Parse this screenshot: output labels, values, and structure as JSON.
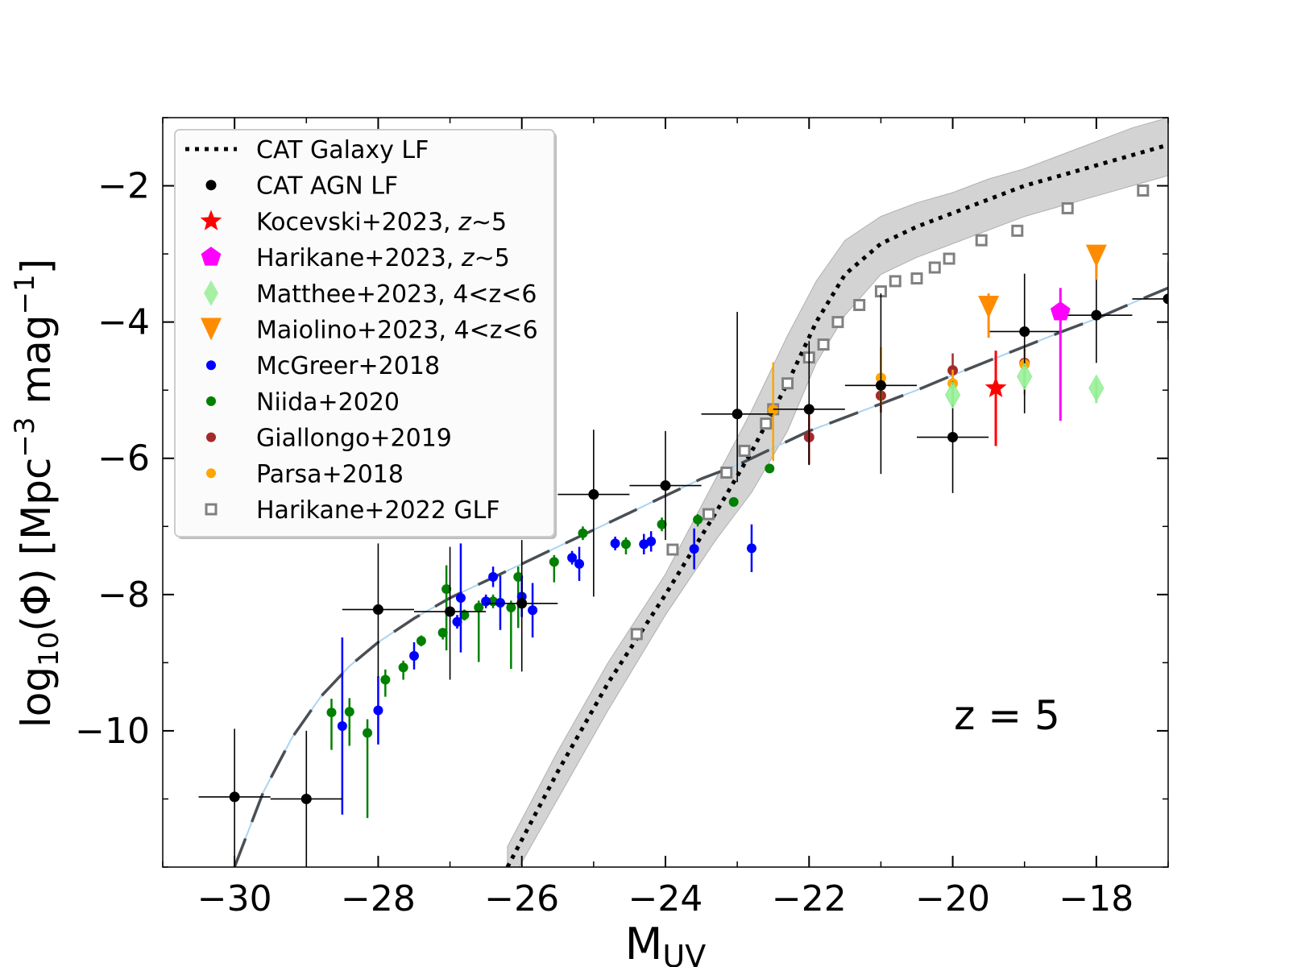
{
  "chart_data": {
    "type": "scatter",
    "xlabel_main": "M",
    "xlabel_sub": "UV",
    "ylabel": "log10(Φ) [Mpc^-3 mag^-1]",
    "ylabel_parts": {
      "pre": "log",
      "sub": "10",
      "mid": "(Φ) [Mpc",
      "sup1": "−3",
      "mid2": " mag",
      "sup2": "−1",
      "post": "]"
    },
    "annotation": "z = 5",
    "xlim": [
      -31,
      -17
    ],
    "ylim": [
      -12,
      -1
    ],
    "xticks": [
      -30,
      -28,
      -26,
      -24,
      -22,
      -20,
      -18
    ],
    "xtick_labels": [
      "−30",
      "−28",
      "−26",
      "−24",
      "−22",
      "−20",
      "−18"
    ],
    "yticks": [
      -10,
      -8,
      -6,
      -4,
      -2
    ],
    "ytick_labels": [
      "−10",
      "−8",
      "−6",
      "−4",
      "−2"
    ],
    "legend": [
      {
        "label": "CAT Galaxy LF",
        "marker": "dotted-line",
        "color": "#000000"
      },
      {
        "label": "CAT AGN LF",
        "marker": "circle",
        "color": "#000000"
      },
      {
        "label": "Kocevski+2023, ",
        "label_italic": "z",
        "label_tail": "∼5",
        "marker": "star",
        "color": "#ff0000"
      },
      {
        "label": "Harikane+2023, ",
        "label_italic": "z",
        "label_tail": "∼5",
        "marker": "pentagon",
        "color": "#ff00ff"
      },
      {
        "label": "Matthee+2023, 4<z<6",
        "marker": "thin-diamond",
        "color": "#90ee90"
      },
      {
        "label": "Maiolino+2023, 4<z<6",
        "marker": "triangle-down",
        "color": "#ff8c00"
      },
      {
        "label": "McGreer+2018",
        "marker": "circle-small",
        "color": "#0000ff"
      },
      {
        "label": "Niida+2020",
        "marker": "circle-small",
        "color": "#008000"
      },
      {
        "label": "Giallongo+2019",
        "marker": "circle-small",
        "color": "#a52a2a"
      },
      {
        "label": "Parsa+2018",
        "marker": "circle-small",
        "color": "#ffa500"
      },
      {
        "label": "Harikane+2022 GLF",
        "marker": "open-square",
        "color": "#808080"
      }
    ],
    "series": {
      "galaxy_lf": {
        "name": "CAT Galaxy LF",
        "x": [
          -26.2,
          -25.5,
          -24.8,
          -24.0,
          -23.3,
          -22.8,
          -22.3,
          -21.9,
          -21.5,
          -21.0,
          -20.5,
          -20.0,
          -19.5,
          -19.0,
          -18.5,
          -18.0,
          -17.5,
          -17.0
        ],
        "y": [
          -12.0,
          -10.6,
          -9.3,
          -8.0,
          -6.8,
          -5.9,
          -4.9,
          -4.0,
          -3.3,
          -2.85,
          -2.6,
          -2.4,
          -2.2,
          -2.0,
          -1.85,
          -1.7,
          -1.55,
          -1.4
        ],
        "band_upper": [
          -11.7,
          -10.3,
          -9.0,
          -7.7,
          -6.3,
          -5.3,
          -4.2,
          -3.4,
          -2.8,
          -2.45,
          -2.25,
          -2.1,
          -1.9,
          -1.75,
          -1.55,
          -1.35,
          -1.15,
          -1.0
        ],
        "band_lower": [
          -12.3,
          -11.0,
          -9.7,
          -8.3,
          -7.2,
          -6.5,
          -5.6,
          -4.6,
          -3.9,
          -3.3,
          -3.05,
          -2.85,
          -2.65,
          -2.45,
          -2.3,
          -2.15,
          -2.0,
          -1.85
        ]
      },
      "agn_model": {
        "name": "AGN model",
        "x": [
          -30.0,
          -29.6,
          -29.2,
          -28.8,
          -28.4,
          -28.0,
          -27.5,
          -27.0,
          -26.5,
          -26.0,
          -25.5,
          -25.0,
          -24.5,
          -24.0,
          -23.5,
          -23.0,
          -22.5,
          -22.0,
          -21.5,
          -21.0,
          -20.5,
          -20.0,
          -19.5,
          -19.0,
          -18.5,
          -18.0,
          -17.5,
          -17.0
        ],
        "y": [
          -12.0,
          -10.9,
          -10.1,
          -9.5,
          -9.05,
          -8.7,
          -8.35,
          -8.05,
          -7.8,
          -7.55,
          -7.3,
          -7.05,
          -6.8,
          -6.55,
          -6.3,
          -6.1,
          -5.85,
          -5.6,
          -5.4,
          -5.2,
          -5.0,
          -4.78,
          -4.57,
          -4.36,
          -4.15,
          -3.95,
          -3.72,
          -3.5
        ]
      },
      "cat_agn_lf": {
        "name": "CAT AGN LF",
        "x": [
          -30.0,
          -29.0,
          -28.0,
          -27.0,
          -26.0,
          -25.0,
          -24.0,
          -23.0,
          -22.0,
          -21.0,
          -20.0,
          -19.0,
          -18.0,
          -17.0
        ],
        "y": [
          -10.97,
          -11.0,
          -8.22,
          -8.25,
          -8.13,
          -6.53,
          -6.4,
          -5.35,
          -5.28,
          -4.93,
          -5.69,
          -4.14,
          -3.9,
          -3.66
        ],
        "xerr": [
          0.5,
          0.5,
          0.5,
          0.5,
          0.5,
          0.5,
          0.5,
          0.5,
          0.5,
          0.5,
          0.5,
          0.5,
          0.5,
          0.5
        ],
        "yerr_low": [
          1.03,
          1.0,
          1.0,
          1.0,
          1.0,
          1.5,
          0.8,
          1.0,
          0.82,
          1.3,
          0.82,
          1.2,
          0.7,
          0.6
        ],
        "yerr_high": [
          1.0,
          1.0,
          0.97,
          0.95,
          0.93,
          0.95,
          0.8,
          1.5,
          1.0,
          1.35,
          0.82,
          0.85,
          0.7,
          0.55
        ]
      },
      "kocevski": {
        "name": "Kocevski+2023",
        "x": [
          -19.4
        ],
        "y": [
          -4.97
        ],
        "err_low": [
          0.85
        ],
        "err_high": [
          0.55
        ]
      },
      "harikane2023": {
        "name": "Harikane+2023",
        "x": [
          -18.5
        ],
        "y": [
          -3.85
        ],
        "err_low": [
          1.6
        ],
        "err_high": [
          0.35
        ]
      },
      "matthee": {
        "name": "Matthee+2023",
        "x": [
          -20.0,
          -19.0,
          -18.0
        ],
        "y": [
          -5.07,
          -4.8,
          -4.97
        ],
        "err_low": [
          0.15,
          0.15,
          0.22
        ],
        "err_high": [
          0.15,
          0.15,
          0.12
        ]
      },
      "maiolino": {
        "name": "Maiolino+2023",
        "x": [
          -19.5,
          -18.0
        ],
        "y": [
          -3.78,
          -3.03
        ],
        "err_low": [
          0.45,
          0.35
        ],
        "err_high": [
          0.2,
          0.1
        ]
      },
      "mcgreer": {
        "name": "McGreer+2018",
        "x": [
          -28.5,
          -28.0,
          -27.5,
          -26.9,
          -26.85,
          -26.5,
          -26.4,
          -26.3,
          -26.0,
          -25.85,
          -25.3,
          -25.2,
          -24.7,
          -24.3,
          -24.2,
          -23.6,
          -22.8
        ],
        "y": [
          -9.93,
          -9.7,
          -8.9,
          -8.4,
          -8.05,
          -8.1,
          -7.74,
          -8.12,
          -8.03,
          -8.23,
          -7.46,
          -7.55,
          -7.25,
          -7.26,
          -7.22,
          -7.33,
          -7.32
        ],
        "err": [
          1.3,
          0.5,
          0.2,
          0.1,
          0.8,
          0.1,
          0.15,
          0.4,
          0.3,
          0.4,
          0.1,
          0.25,
          0.1,
          0.15,
          0.15,
          0.3,
          0.35
        ]
      },
      "niida": {
        "name": "Niida+2020",
        "x": [
          -28.65,
          -28.4,
          -28.15,
          -27.9,
          -27.65,
          -27.4,
          -27.1,
          -27.05,
          -26.8,
          -26.6,
          -26.4,
          -26.15,
          -26.05,
          -25.55,
          -25.15,
          -24.55,
          -24.05,
          -23.55,
          -23.05,
          -22.55
        ],
        "y": [
          -9.73,
          -9.72,
          -10.03,
          -9.25,
          -9.07,
          -8.68,
          -8.56,
          -7.92,
          -8.3,
          -8.19,
          -8.1,
          -8.19,
          -7.74,
          -7.52,
          -7.1,
          -7.26,
          -6.97,
          -6.9,
          -6.64,
          -6.15
        ],
        "err_low": [
          0.55,
          0.5,
          1.25,
          0.25,
          0.18,
          0.08,
          0.1,
          0.9,
          0.08,
          0.8,
          0.1,
          0.9,
          0.75,
          0.3,
          0.1,
          0.15,
          0.1,
          0.1,
          0.05,
          0.05
        ],
        "err_high": [
          0.2,
          0.2,
          0.2,
          0.15,
          0.1,
          0.08,
          0.05,
          0.35,
          0.08,
          0.1,
          0.1,
          0.1,
          0.15,
          0.1,
          0.1,
          0.1,
          0.1,
          0.08,
          0.05,
          0.05
        ]
      },
      "giallongo": {
        "name": "Giallongo+2019",
        "x": [
          -22.0,
          -21.0,
          -20.0,
          -19.0
        ],
        "y": [
          -5.69,
          -5.08,
          -4.71,
          -4.6
        ],
        "err": [
          0.4,
          0.25,
          0.25,
          0.2
        ]
      },
      "parsa": {
        "name": "Parsa+2018",
        "x": [
          -22.5,
          -21.0,
          -20.0,
          -19.0
        ],
        "y": [
          -5.29,
          -4.82,
          -4.9,
          -4.62
        ],
        "err_low": [
          0.75,
          0.4,
          0.3,
          0.45
        ],
        "err_high": [
          0.7,
          0.45,
          0.2,
          0.2
        ]
      },
      "harikane2022_glf": {
        "name": "Harikane+2022 GLF",
        "x": [
          -24.4,
          -23.9,
          -23.4,
          -23.15,
          -22.9,
          -22.6,
          -22.5,
          -22.3,
          -22.0,
          -21.8,
          -21.6,
          -21.3,
          -21.0,
          -20.8,
          -20.5,
          -20.25,
          -20.05,
          -19.6,
          -19.1,
          -18.4,
          -17.35
        ],
        "y": [
          -8.58,
          -7.34,
          -6.82,
          -6.21,
          -5.89,
          -5.49,
          -5.28,
          -4.9,
          -4.52,
          -4.33,
          -4.0,
          -3.75,
          -3.55,
          -3.4,
          -3.36,
          -3.2,
          -3.07,
          -2.8,
          -2.66,
          -2.33,
          -2.07
        ]
      }
    }
  }
}
